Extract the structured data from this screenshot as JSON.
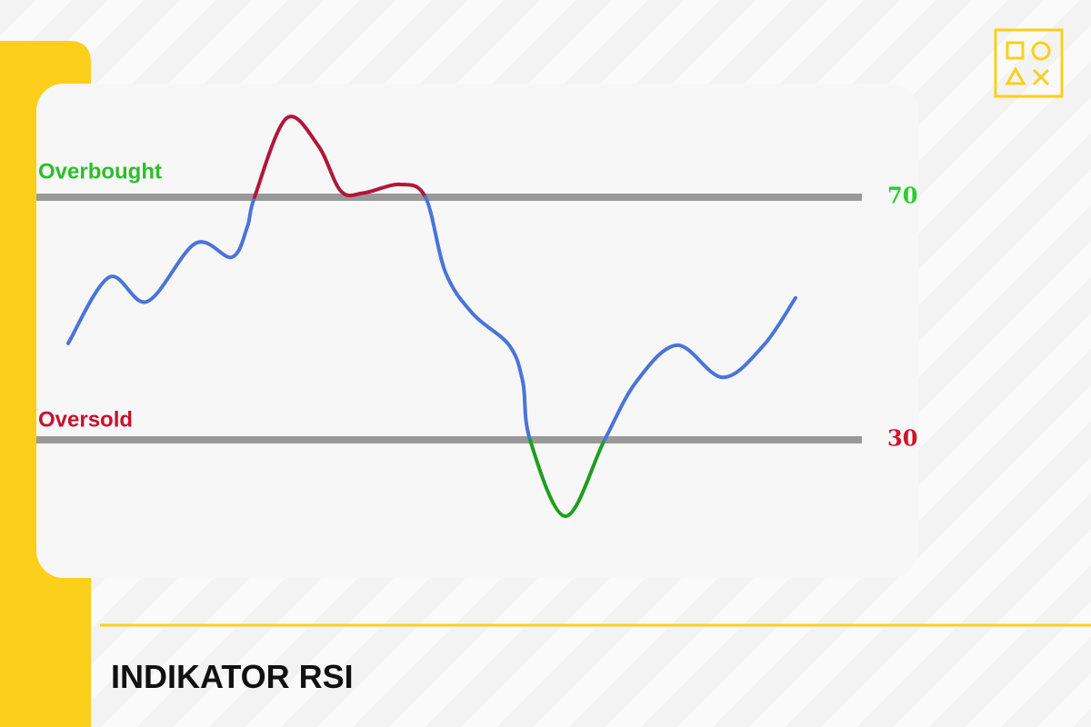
{
  "page_title": "INDIKATOR RSI",
  "chart_data": {
    "type": "line",
    "annotations": [
      "Overbought",
      "Oversold"
    ],
    "annotation_colors": [
      "#2bbf2b",
      "#c8102e"
    ],
    "x": [
      35,
      80,
      122,
      175,
      215,
      232,
      240,
      275,
      310,
      335,
      360,
      400,
      428,
      450,
      480,
      520,
      535,
      543,
      582,
      625,
      660,
      705,
      755,
      800,
      835
    ],
    "series": [
      {
        "name": "RSI",
        "color": "#4a74d8",
        "values": [
          45.9,
          56.8,
          52.8,
          62.4,
          60.1,
          65.1,
          70,
          83,
          78.5,
          71,
          70.7,
          72.1,
          70,
          57.6,
          50.8,
          45.6,
          39.6,
          30,
          17.4,
          30,
          39.6,
          45.6,
          40.3,
          45.6,
          53.4
        ]
      }
    ],
    "above_color": "#b0173a",
    "below_color": "#1f9e1f",
    "xlim": [
      0,
      970
    ],
    "ylim": [
      10,
      90
    ],
    "yticks": [
      30,
      70
    ],
    "ytick_colors": [
      "#d4112b",
      "#2ecc2e"
    ],
    "grid": true,
    "grid_color": "#999999"
  }
}
